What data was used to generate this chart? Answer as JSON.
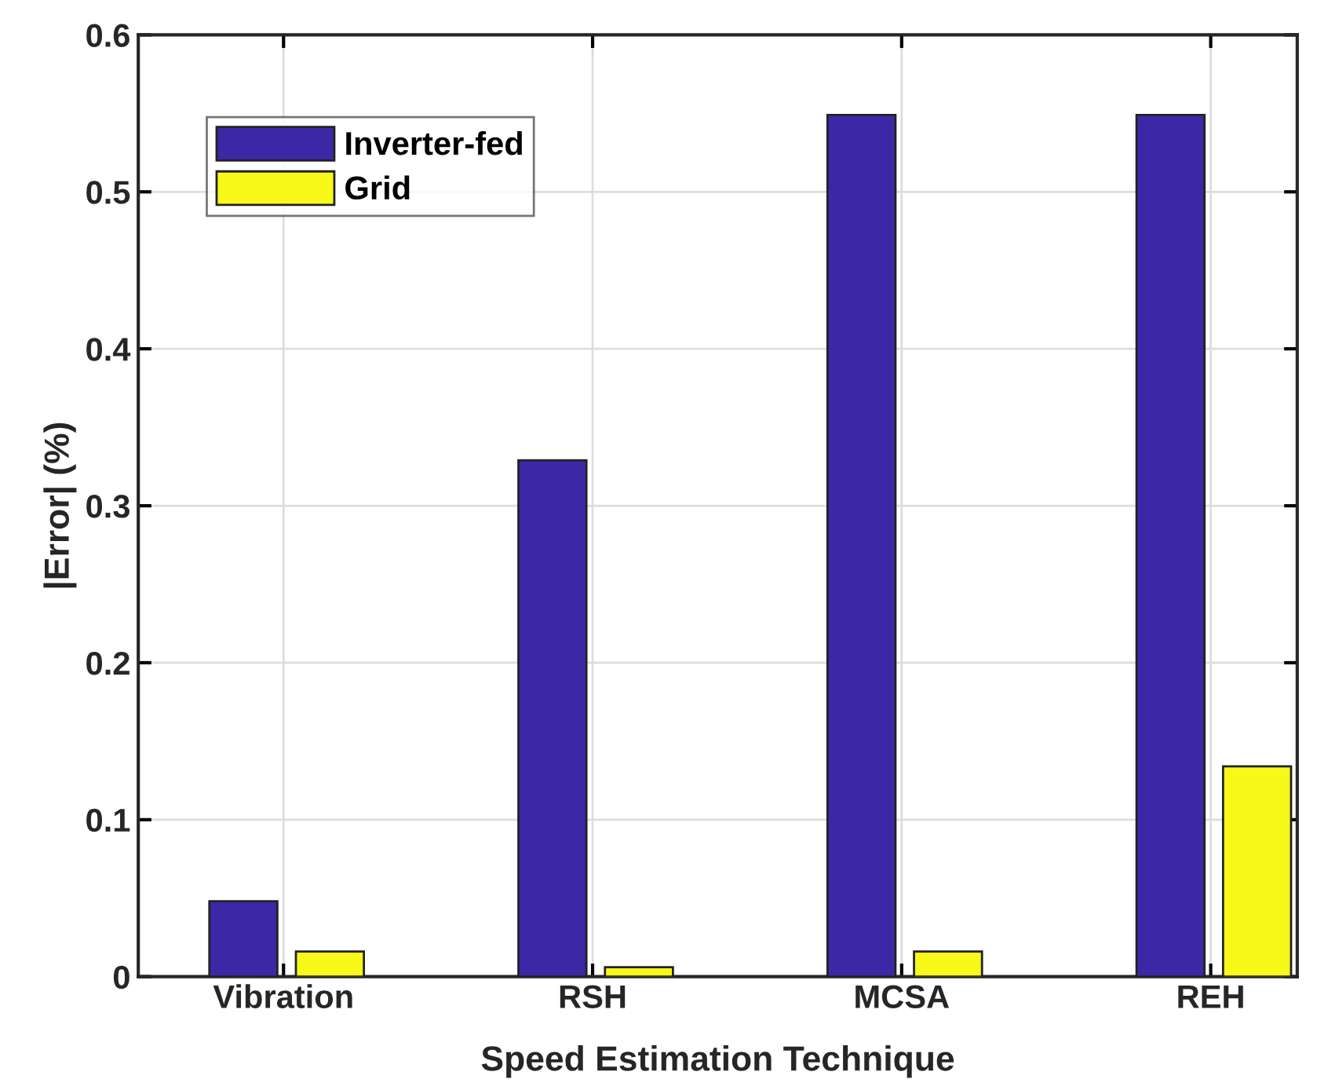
{
  "chart_data": {
    "type": "bar",
    "xlabel": "Speed Estimation Technique",
    "ylabel": "|Error| (%)",
    "categories": [
      "Vibration",
      "RSH",
      "MCSA",
      "REH"
    ],
    "series": [
      {
        "name": "Inverter-fed",
        "color": "#3c28a6",
        "values": [
          0.048,
          0.329,
          0.549,
          0.549
        ]
      },
      {
        "name": "Grid",
        "color": "#f8f81a",
        "values": [
          0.016,
          0.006,
          0.016,
          0.134
        ]
      }
    ],
    "ylim": [
      0,
      0.6
    ],
    "yticks": [
      0,
      0.1,
      0.2,
      0.3,
      0.4,
      0.5,
      0.6
    ],
    "grid": true,
    "legend": "top left"
  }
}
